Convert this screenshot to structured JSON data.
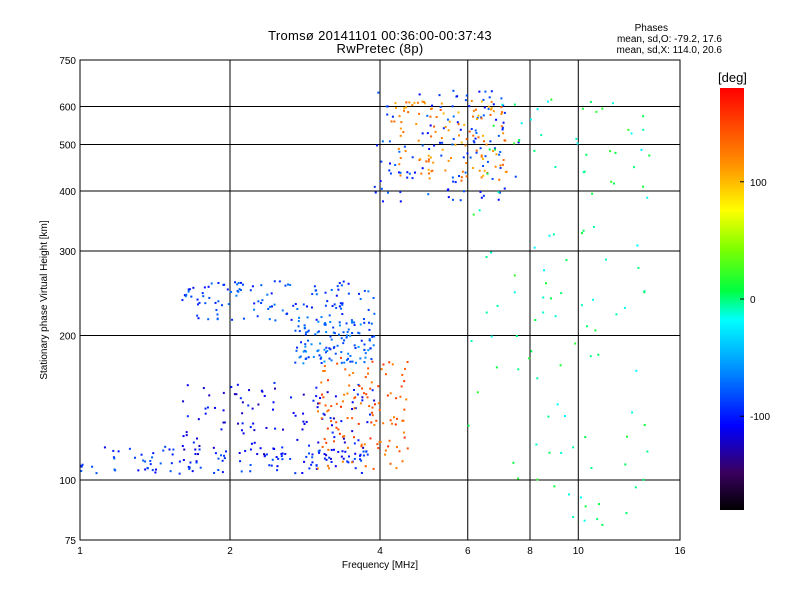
{
  "chart_data": {
    "type": "scatter",
    "title": "Tromsø 20141101 00:36:00-00:37:43",
    "subtitle": "RwPretec (8p)",
    "stats": {
      "heading": "Phases",
      "line1": "mean, sd,O: -79.2, 17.6",
      "line2": "mean, sd,X: 114.0, 20.6"
    },
    "xlabel": "Frequency [MHz]",
    "ylabel": "Stationary phase Virtual Height [km]",
    "x_scale": "log",
    "y_scale": "log",
    "xlim": [
      1,
      16
    ],
    "ylim": [
      75,
      750
    ],
    "x_ticks": [
      {
        "v": 1,
        "label": "1"
      },
      {
        "v": 2,
        "label": "2"
      },
      {
        "v": 4,
        "label": "4"
      },
      {
        "v": 6,
        "label": "6"
      },
      {
        "v": 8,
        "label": "8"
      },
      {
        "v": 10,
        "label": "10"
      },
      {
        "v": 16,
        "label": "16"
      }
    ],
    "y_ticks": [
      {
        "v": 75,
        "label": "75"
      },
      {
        "v": 100,
        "label": "100"
      },
      {
        "v": 200,
        "label": "200"
      },
      {
        "v": 300,
        "label": "300"
      },
      {
        "v": 400,
        "label": "400"
      },
      {
        "v": 500,
        "label": "500"
      },
      {
        "v": 600,
        "label": "600"
      },
      {
        "v": 750,
        "label": "750"
      }
    ],
    "grid": true,
    "colorbar": {
      "label": "[deg]",
      "range": [
        -180,
        180
      ],
      "ticks": [
        {
          "v": 100,
          "label": "100"
        },
        {
          "v": 0,
          "label": "0"
        },
        {
          "v": -100,
          "label": "-100"
        }
      ]
    },
    "point_groups": [
      {
        "name": "E-region O-trace",
        "x_range": [
          1.0,
          3.8
        ],
        "y_range": [
          103,
          118
        ],
        "phase": -95
      },
      {
        "name": "E-region blue branches",
        "x_range": [
          1.6,
          3.9
        ],
        "y_range": [
          110,
          160
        ],
        "phase": -110
      },
      {
        "name": "X-trace (orange)",
        "x_range": [
          3.0,
          4.6
        ],
        "y_range": [
          105,
          180
        ],
        "phase": 140
      },
      {
        "name": "F1 low band",
        "x_range": [
          1.6,
          3.9
        ],
        "y_range": [
          215,
          260
        ],
        "phase": -85
      },
      {
        "name": "F1 mid",
        "x_range": [
          2.7,
          3.9
        ],
        "y_range": [
          175,
          215
        ],
        "phase": -75
      },
      {
        "name": "F2 O",
        "x_range": [
          3.9,
          7.6
        ],
        "y_range": [
          380,
          650
        ],
        "phase": -90
      },
      {
        "name": "F2 X",
        "x_range": [
          4.2,
          7.2
        ],
        "y_range": [
          420,
          620
        ],
        "phase": 120
      },
      {
        "name": "Scattered",
        "x_range": [
          6.0,
          14.0
        ],
        "y_range": [
          80,
          650
        ],
        "phase": 0
      }
    ]
  }
}
